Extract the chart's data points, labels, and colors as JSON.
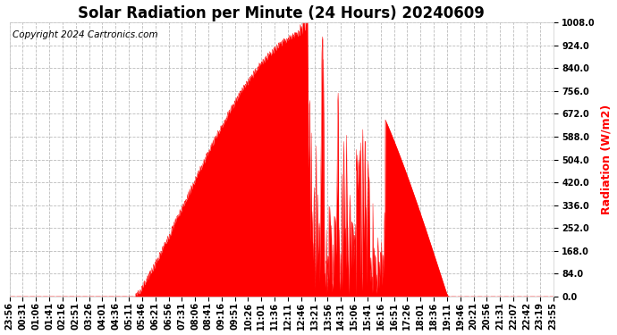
{
  "title": "Solar Radiation per Minute (24 Hours) 20240609",
  "copyright_text": "Copyright 2024 Cartronics.com",
  "ylabel_text": "Radiation (W/m2)",
  "ylabel_color": "#ff0000",
  "line_color": "#ff0000",
  "fill_color": "#ff0000",
  "background_color": "#ffffff",
  "grid_color": "#aaaaaa",
  "dashed_line_color": "#ff0000",
  "ylim": [
    0.0,
    1008.0
  ],
  "yticks": [
    0.0,
    84.0,
    168.0,
    252.0,
    336.0,
    420.0,
    504.0,
    588.0,
    672.0,
    756.0,
    840.0,
    924.0,
    1008.0
  ],
  "title_fontsize": 12,
  "tick_fontsize": 7,
  "ylabel_fontsize": 9,
  "copyright_fontsize": 7.5,
  "num_minutes": 1440,
  "sunrise_minute": 336,
  "sunset_minute": 1165,
  "peak_minute": 815,
  "peak_value": 975
}
